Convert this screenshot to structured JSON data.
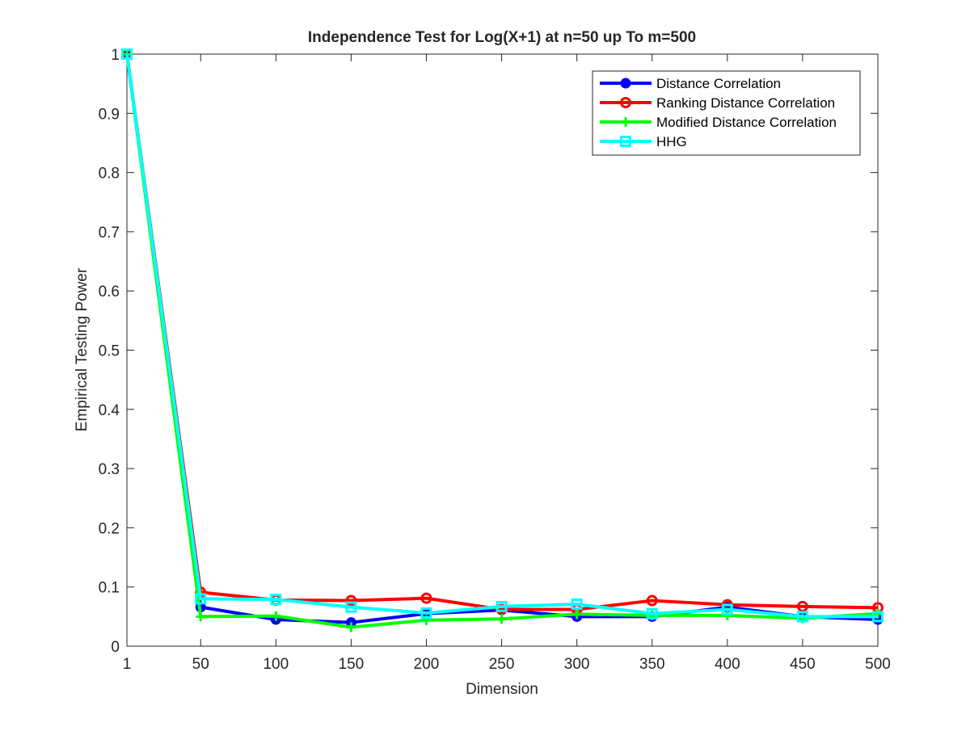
{
  "chart_data": {
    "type": "line",
    "title": "Independence Test for Log(X+1) at n=50 up To m=500",
    "xlabel": "Dimension",
    "ylabel": "Empirical Testing Power",
    "xlim": [
      1,
      500
    ],
    "ylim": [
      0,
      1
    ],
    "x": [
      1,
      50,
      100,
      150,
      200,
      250,
      300,
      350,
      400,
      450,
      500
    ],
    "xticks": [
      "1",
      "50",
      "100",
      "150",
      "200",
      "250",
      "300",
      "350",
      "400",
      "450",
      "500"
    ],
    "yticks": [
      "0",
      "0.1",
      "0.2",
      "0.3",
      "0.4",
      "0.5",
      "0.6",
      "0.7",
      "0.8",
      "0.9",
      "1"
    ],
    "grid": false,
    "legend_position": "top-right",
    "series": [
      {
        "name": "Distance Correlation",
        "color": "#0000ff",
        "marker": "filled-circle",
        "values": [
          1.0,
          0.066,
          0.045,
          0.04,
          0.055,
          0.061,
          0.05,
          0.05,
          0.066,
          0.05,
          0.045
        ]
      },
      {
        "name": "Ranking Distance Correlation",
        "color": "#ff0000",
        "marker": "open-circle",
        "values": [
          1.0,
          0.091,
          0.078,
          0.077,
          0.081,
          0.062,
          0.062,
          0.077,
          0.07,
          0.067,
          0.065
        ]
      },
      {
        "name": "Modified Distance Correlation",
        "color": "#00ff00",
        "marker": "plus",
        "values": [
          1.0,
          0.05,
          0.051,
          0.032,
          0.044,
          0.046,
          0.054,
          0.052,
          0.052,
          0.047,
          0.055
        ]
      },
      {
        "name": "HHG",
        "color": "#00ffff",
        "marker": "open-square",
        "values": [
          1.0,
          0.08,
          0.079,
          0.066,
          0.056,
          0.067,
          0.071,
          0.055,
          0.062,
          0.05,
          0.05
        ]
      }
    ]
  }
}
